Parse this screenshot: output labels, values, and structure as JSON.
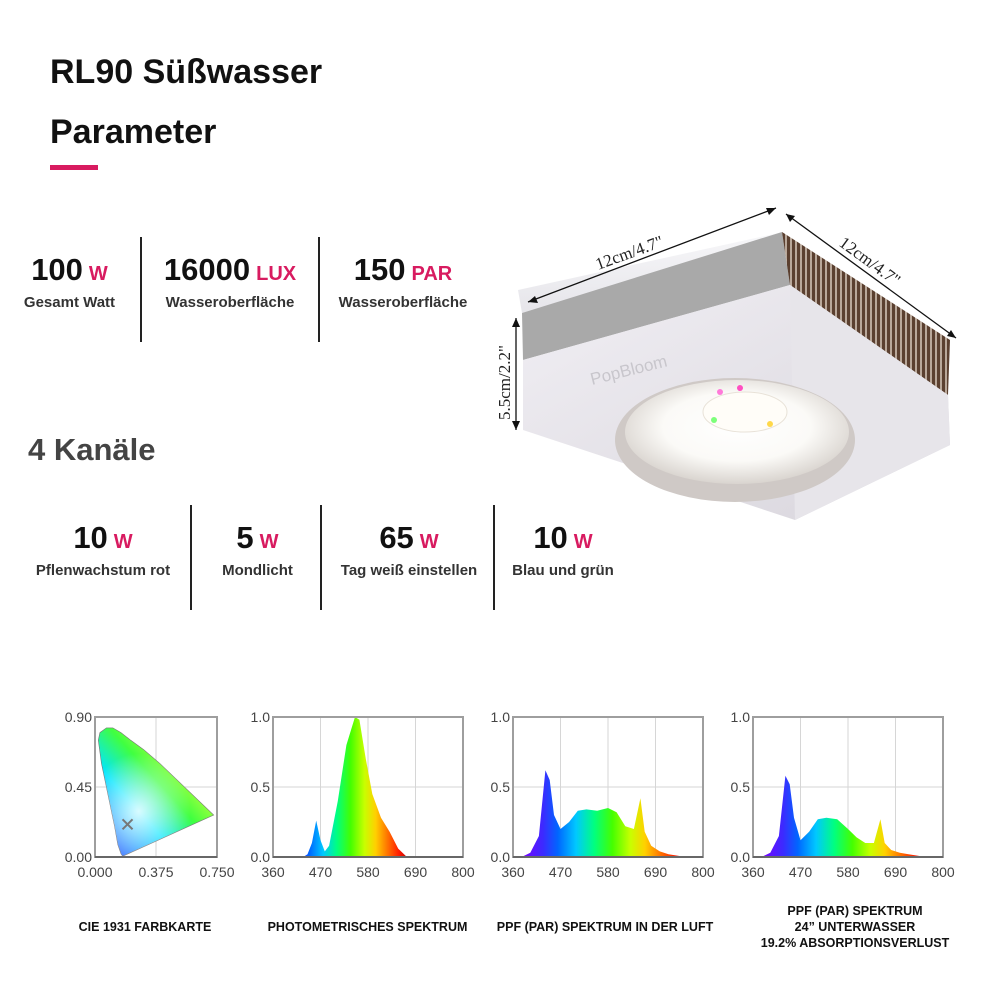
{
  "heading": {
    "line1": "RL90 Süßwasser",
    "line2": "Parameter"
  },
  "colors": {
    "accent": "#D81B60",
    "text": "#111111",
    "frame": "#9e9e9e"
  },
  "top_stats": [
    {
      "value": "100",
      "unit": "W",
      "label": "Gesamt Watt"
    },
    {
      "value": "16000",
      "unit": "LUX",
      "label": "Wasseroberfläche"
    },
    {
      "value": "150",
      "unit": "PAR",
      "label": "Wasseroberfläche"
    }
  ],
  "channels_heading": "4 Kanäle",
  "channels": [
    {
      "value": "10",
      "unit": "W",
      "label": "Pflenwachstum rot"
    },
    {
      "value": "5",
      "unit": "W",
      "label": "Mondlicht"
    },
    {
      "value": "65",
      "unit": "W",
      "label": "Tag weiß einstellen"
    },
    {
      "value": "10",
      "unit": "W",
      "label": "Blau und grün"
    }
  ],
  "product": {
    "dim_width": "12cm/4.7\"",
    "dim_depth": "12cm/4.7\"",
    "dim_height": "5.5cm/2.2\"",
    "brand": "PopBloom"
  },
  "chart_data": [
    {
      "type": "area",
      "title": "CIE 1931 FARBKARTE",
      "x_ticks": [
        "0.000",
        "0.375",
        "0.750"
      ],
      "y_ticks": [
        "0.90",
        "0.45",
        "0.00"
      ],
      "xlim": [
        0,
        0.75
      ],
      "ylim": [
        0,
        0.9
      ],
      "point": {
        "x": 0.2,
        "y": 0.21
      }
    },
    {
      "type": "area",
      "title": "PHOTOMETRISCHES SPEKTRUM",
      "x_ticks": [
        "360",
        "470",
        "580",
        "690",
        "800"
      ],
      "y_ticks": [
        "1.0",
        "0.5",
        "0.0"
      ],
      "xlim": [
        360,
        800
      ],
      "ylim": [
        0,
        1
      ],
      "x": [
        380,
        430,
        440,
        450,
        460,
        470,
        480,
        490,
        510,
        530,
        550,
        560,
        575,
        590,
        610,
        630,
        650,
        670,
        700
      ],
      "y": [
        0,
        0,
        0.02,
        0.1,
        0.26,
        0.12,
        0.04,
        0.08,
        0.4,
        0.8,
        1.0,
        0.98,
        0.7,
        0.45,
        0.28,
        0.18,
        0.06,
        0,
        0
      ]
    },
    {
      "type": "area",
      "title": "PPF (PAR) SPEKTRUM IN DER LUFT",
      "x_ticks": [
        "360",
        "470",
        "580",
        "690",
        "800"
      ],
      "y_ticks": [
        "1.0",
        "0.5",
        "0.0"
      ],
      "xlim": [
        360,
        800
      ],
      "ylim": [
        0,
        1
      ],
      "x": [
        380,
        400,
        420,
        435,
        445,
        455,
        470,
        490,
        510,
        530,
        555,
        580,
        600,
        620,
        640,
        655,
        665,
        680,
        690,
        700,
        720,
        760,
        800
      ],
      "y": [
        0,
        0.03,
        0.15,
        0.62,
        0.55,
        0.3,
        0.2,
        0.25,
        0.33,
        0.34,
        0.33,
        0.35,
        0.32,
        0.22,
        0.2,
        0.42,
        0.18,
        0.08,
        0.06,
        0.04,
        0.02,
        0,
        0
      ]
    },
    {
      "type": "area",
      "title_lines": [
        "PPF (PAR) SPEKTRUM",
        "24”  UNTERWASSER",
        "19.2% ABSORPTIONSVERLUST"
      ],
      "x_ticks": [
        "360",
        "470",
        "580",
        "690",
        "800"
      ],
      "y_ticks": [
        "1.0",
        "0.5",
        "0.0"
      ],
      "xlim": [
        360,
        800
      ],
      "ylim": [
        0,
        1
      ],
      "x": [
        380,
        400,
        420,
        435,
        445,
        455,
        470,
        490,
        510,
        530,
        555,
        580,
        600,
        620,
        640,
        655,
        665,
        680,
        690,
        700,
        720,
        760,
        800
      ],
      "y": [
        0,
        0.03,
        0.15,
        0.58,
        0.52,
        0.28,
        0.12,
        0.18,
        0.27,
        0.28,
        0.27,
        0.2,
        0.14,
        0.1,
        0.1,
        0.27,
        0.1,
        0.05,
        0.04,
        0.03,
        0.02,
        0,
        0
      ]
    }
  ]
}
